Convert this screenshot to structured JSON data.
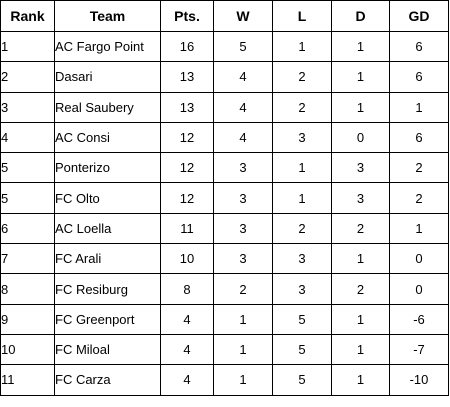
{
  "headers": [
    "Rank",
    "Team",
    "Pts.",
    "W",
    "L",
    "D",
    "GD"
  ],
  "rows": [
    {
      "rank": "1",
      "team": "AC Fargo Point",
      "pts": "16",
      "w": "5",
      "l": "1",
      "d": "1",
      "gd": "6"
    },
    {
      "rank": "2",
      "team": "Dasari",
      "pts": "13",
      "w": "4",
      "l": "2",
      "d": "1",
      "gd": "6"
    },
    {
      "rank": "3",
      "team": "Real Saubery",
      "pts": "13",
      "w": "4",
      "l": "2",
      "d": "1",
      "gd": "1"
    },
    {
      "rank": "4",
      "team": "AC Consi",
      "pts": "12",
      "w": "4",
      "l": "3",
      "d": "0",
      "gd": "6"
    },
    {
      "rank": "5",
      "team": "Ponterizo",
      "pts": "12",
      "w": "3",
      "l": "1",
      "d": "3",
      "gd": "2"
    },
    {
      "rank": "5",
      "team": "FC Olto",
      "pts": "12",
      "w": "3",
      "l": "1",
      "d": "3",
      "gd": "2"
    },
    {
      "rank": "6",
      "team": "AC Loella",
      "pts": "11",
      "w": "3",
      "l": "2",
      "d": "2",
      "gd": "1"
    },
    {
      "rank": "7",
      "team": "FC Arali",
      "pts": "10",
      "w": "3",
      "l": "3",
      "d": "1",
      "gd": "0"
    },
    {
      "rank": "8",
      "team": "FC Resiburg",
      "pts": "8",
      "w": "2",
      "l": "3",
      "d": "2",
      "gd": "0"
    },
    {
      "rank": "9",
      "team": "FC Greenport",
      "pts": "4",
      "w": "1",
      "l": "5",
      "d": "1",
      "gd": "-6"
    },
    {
      "rank": "10",
      "team": "FC Miloal",
      "pts": "4",
      "w": "1",
      "l": "5",
      "d": "1",
      "gd": "-7"
    },
    {
      "rank": "11",
      "team": "FC Carza",
      "pts": "4",
      "w": "1",
      "l": "5",
      "d": "1",
      "gd": "-10"
    }
  ]
}
